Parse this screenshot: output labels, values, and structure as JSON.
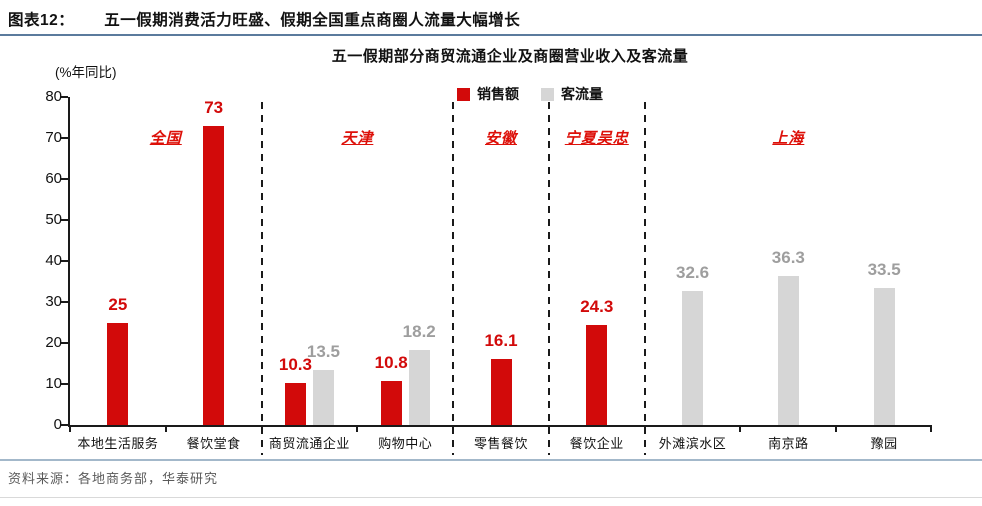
{
  "header": {
    "figure_label": "图表12：",
    "title": "五一假期消费活力旺盛、假期全国重点商圈人流量大幅增长"
  },
  "chart_data": {
    "type": "bar",
    "title": "五一假期部分商贸流通企业及商圈营业收入及客流量",
    "unit_label": "(%年同比)",
    "ylim": [
      0,
      80
    ],
    "yticks": [
      0,
      10,
      20,
      30,
      40,
      50,
      60,
      70,
      80
    ],
    "grid": false,
    "legend_position": "top-center",
    "series": [
      {
        "key": "sales",
        "name": "销售额",
        "color": "#d20a0a"
      },
      {
        "key": "traffic",
        "name": "客流量",
        "color": "#d6d6d6"
      }
    ],
    "groups": [
      {
        "region": "全国",
        "categories": [
          {
            "label": "本地生活服务",
            "bars": [
              {
                "series": "sales",
                "value": 25
              }
            ]
          },
          {
            "label": "餐饮堂食",
            "bars": [
              {
                "series": "sales",
                "value": 73
              }
            ]
          }
        ]
      },
      {
        "region": "天津",
        "categories": [
          {
            "label": "商贸流通企业",
            "bars": [
              {
                "series": "sales",
                "value": 10.3
              },
              {
                "series": "traffic",
                "value": 13.5
              }
            ]
          },
          {
            "label": "购物中心",
            "bars": [
              {
                "series": "sales",
                "value": 10.8
              },
              {
                "series": "traffic",
                "value": 18.2
              }
            ]
          }
        ]
      },
      {
        "region": "安徽",
        "categories": [
          {
            "label": "零售餐饮",
            "bars": [
              {
                "series": "sales",
                "value": 16.1
              }
            ]
          }
        ]
      },
      {
        "region": "宁夏吴忠",
        "categories": [
          {
            "label": "餐饮企业",
            "bars": [
              {
                "series": "sales",
                "value": 24.3
              }
            ]
          }
        ]
      },
      {
        "region": "上海",
        "categories": [
          {
            "label": "外滩滨水区",
            "bars": [
              {
                "series": "traffic",
                "value": 32.6
              }
            ]
          },
          {
            "label": "南京路",
            "bars": [
              {
                "series": "traffic",
                "value": 36.3
              }
            ]
          },
          {
            "label": "豫园",
            "bars": [
              {
                "series": "traffic",
                "value": 33.5
              }
            ]
          }
        ]
      }
    ],
    "colors": {
      "sales_bar": "#d20a0a",
      "traffic_bar": "#d6d6d6",
      "sales_label": "#d20a0a",
      "traffic_label": "#9e9e9e",
      "region_label": "#dd1009"
    }
  },
  "footer": {
    "source": "资料来源：各地商务部，华泰研究"
  }
}
